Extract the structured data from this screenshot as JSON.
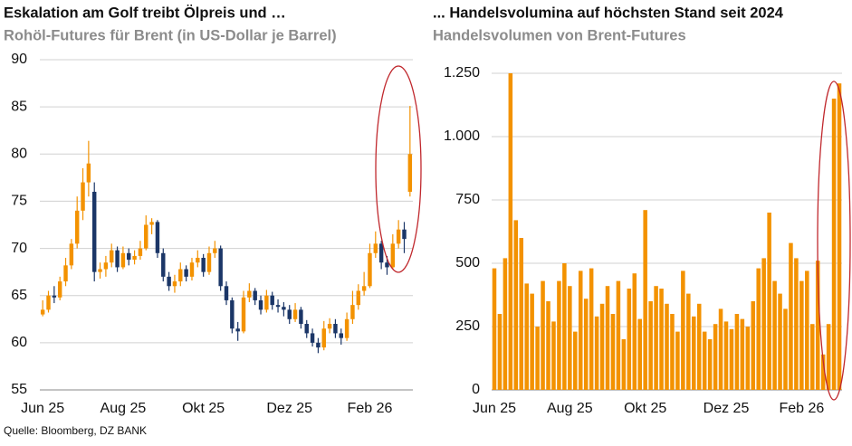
{
  "chart_data": [
    {
      "type": "candlestick",
      "title": "Eskalation am Golf treibt Ölpreis und …",
      "subtitle": "Rohöl-Futures für Brent (in US-Dollar je Barrel)",
      "categories": [
        "Jun 25",
        null,
        null,
        null,
        null,
        null,
        null,
        null,
        null,
        null,
        null,
        null,
        null,
        null,
        "Aug 25",
        null,
        null,
        null,
        null,
        null,
        null,
        null,
        null,
        null,
        null,
        null,
        null,
        null,
        "Okt 25",
        null,
        null,
        null,
        null,
        null,
        null,
        null,
        null,
        null,
        null,
        null,
        null,
        null,
        null,
        "Dez 25",
        null,
        null,
        null,
        null,
        null,
        null,
        null,
        null,
        null,
        null,
        null,
        null,
        null,
        "Feb 26",
        null,
        null,
        null,
        null,
        null,
        null,
        null
      ],
      "open": [
        63.0,
        63.5,
        65.0,
        64.8,
        66.5,
        68.2,
        70.5,
        74.0,
        77.0,
        76.0,
        67.5,
        67.8,
        68.5,
        69.8,
        68.0,
        69.5,
        68.8,
        69.2,
        70.0,
        72.5,
        72.8,
        69.5,
        67.0,
        66.0,
        66.5,
        67.8,
        67.0,
        68.5,
        69.0,
        67.5,
        69.5,
        70.0,
        66.0,
        64.5,
        61.5,
        61.2,
        64.8,
        65.5,
        64.5,
        63.5,
        65.0,
        64.0,
        63.8,
        63.5,
        62.5,
        63.5,
        62.0,
        61.0,
        60.0,
        59.5,
        61.5,
        62.0,
        61.0,
        60.5,
        62.5,
        64.0,
        65.5,
        66.0,
        69.5,
        70.5,
        68.5,
        68.0,
        70.5,
        72.0,
        76.0
      ],
      "high": [
        64.5,
        65.5,
        66.0,
        67.0,
        69.0,
        71.0,
        75.5,
        78.5,
        81.4,
        77.0,
        68.5,
        69.2,
        70.5,
        70.2,
        70.2,
        70.0,
        69.8,
        70.8,
        73.5,
        73.2,
        73.0,
        70.0,
        67.5,
        67.2,
        68.5,
        68.2,
        69.0,
        69.8,
        69.4,
        70.2,
        70.8,
        70.3,
        66.5,
        64.8,
        62.2,
        65.5,
        66.3,
        65.8,
        65.0,
        65.6,
        65.4,
        64.6,
        64.3,
        64.0,
        64.2,
        63.8,
        62.4,
        61.5,
        60.5,
        62.3,
        62.6,
        62.5,
        61.5,
        63.2,
        65.5,
        66.2,
        67.5,
        70.5,
        71.8,
        70.8,
        69.2,
        71.5,
        73.0,
        72.8,
        85.1
      ],
      "low": [
        62.8,
        63.2,
        64.2,
        64.5,
        66.0,
        67.8,
        70.0,
        73.0,
        75.5,
        66.5,
        66.8,
        67.0,
        68.0,
        67.5,
        67.8,
        68.2,
        68.3,
        68.8,
        69.8,
        71.5,
        69.0,
        66.5,
        65.5,
        65.3,
        66.0,
        66.5,
        66.6,
        68.0,
        67.0,
        67.2,
        69.0,
        65.5,
        64.0,
        61.0,
        60.2,
        61.0,
        64.3,
        64.0,
        63.0,
        63.2,
        63.5,
        63.2,
        62.8,
        62.0,
        62.2,
        61.5,
        60.5,
        59.6,
        58.9,
        59.2,
        61.0,
        60.5,
        59.8,
        60.2,
        62.0,
        63.5,
        65.0,
        65.8,
        69.0,
        67.8,
        67.2,
        67.8,
        70.0,
        69.5,
        75.5
      ],
      "close": [
        63.5,
        65.0,
        64.8,
        66.5,
        68.2,
        70.5,
        74.0,
        77.0,
        79.0,
        67.5,
        67.8,
        68.5,
        69.8,
        68.0,
        69.5,
        68.8,
        69.2,
        70.0,
        72.5,
        72.8,
        69.5,
        67.0,
        66.0,
        66.5,
        67.8,
        67.0,
        68.5,
        69.0,
        67.5,
        69.5,
        70.0,
        66.0,
        64.5,
        61.5,
        61.2,
        64.8,
        65.5,
        64.5,
        63.5,
        65.0,
        64.0,
        63.8,
        63.5,
        62.5,
        63.5,
        62.0,
        61.0,
        60.0,
        59.5,
        61.5,
        62.0,
        61.0,
        60.5,
        62.5,
        64.0,
        65.5,
        66.0,
        69.5,
        70.5,
        68.5,
        68.0,
        70.5,
        72.0,
        71.0,
        80.0
      ],
      "up_color": "#f39200",
      "down_color": "#1b3667",
      "ylim": [
        55,
        90
      ],
      "yticks": [
        55,
        60,
        65,
        70,
        75,
        80,
        85,
        90
      ],
      "grid": true
    },
    {
      "type": "bar",
      "title": "... Handelsvolumina auf höchsten Stand seit 2024",
      "subtitle": "Handelsvolumen von Brent-Futures",
      "categories": [
        "Jun 25",
        null,
        null,
        null,
        null,
        null,
        null,
        null,
        null,
        null,
        null,
        null,
        null,
        null,
        "Aug 25",
        null,
        null,
        null,
        null,
        null,
        null,
        null,
        null,
        null,
        null,
        null,
        null,
        null,
        "Okt 25",
        null,
        null,
        null,
        null,
        null,
        null,
        null,
        null,
        null,
        null,
        null,
        null,
        null,
        null,
        "Dez 25",
        null,
        null,
        null,
        null,
        null,
        null,
        null,
        null,
        null,
        null,
        null,
        null,
        null,
        "Feb 26",
        null,
        null,
        null,
        null,
        null,
        null,
        null
      ],
      "values": [
        480,
        300,
        520,
        1250,
        670,
        600,
        420,
        380,
        250,
        430,
        350,
        270,
        430,
        500,
        410,
        230,
        470,
        360,
        480,
        290,
        340,
        410,
        300,
        430,
        200,
        400,
        460,
        280,
        710,
        350,
        410,
        400,
        340,
        300,
        230,
        470,
        380,
        290,
        340,
        230,
        200,
        260,
        320,
        270,
        240,
        300,
        280,
        250,
        350,
        480,
        520,
        700,
        430,
        380,
        320,
        580,
        520,
        430,
        470,
        260,
        510,
        140,
        260,
        1150,
        1210
      ],
      "color": "#f39200",
      "ylim": [
        0,
        1250
      ],
      "yticks": [
        0,
        250,
        500,
        750,
        {
          "value": 1000,
          "label": "1.000"
        },
        {
          "value": 1250,
          "label": "1.250"
        }
      ],
      "grid": true
    }
  ],
  "source": "Quelle: Bloomberg, DZ BANK"
}
